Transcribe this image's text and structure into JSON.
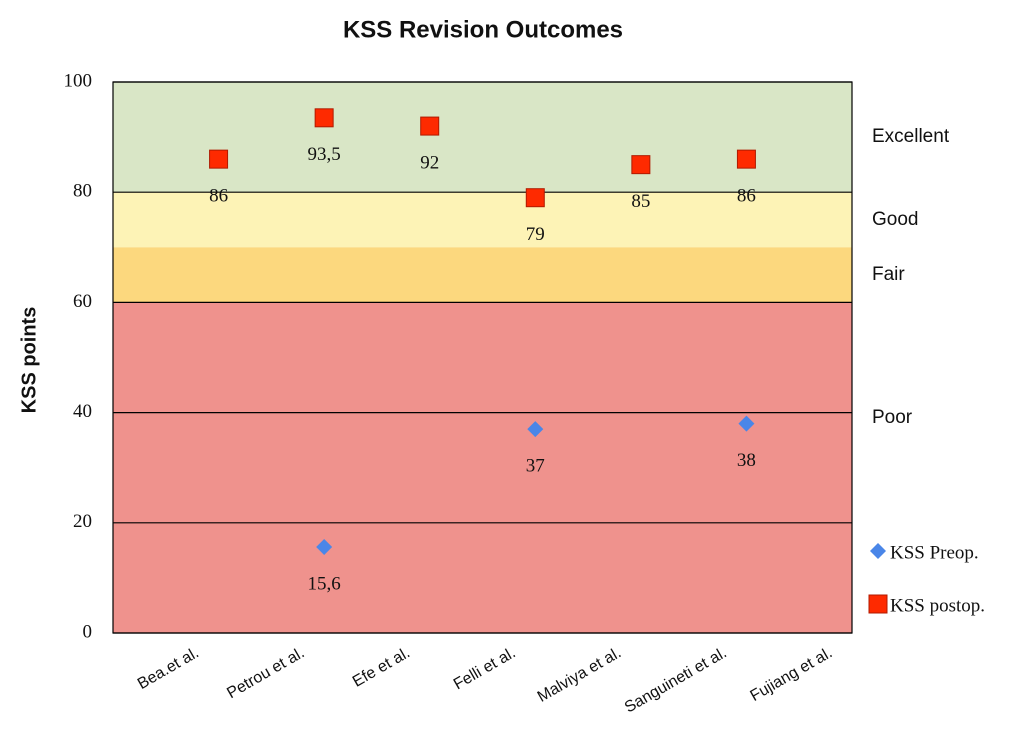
{
  "chart_data": {
    "type": "scatter",
    "title": "KSS Revision Outcomes",
    "y_label": "KSS points",
    "categories": [
      "Bea.et al.",
      "Petrou et al.",
      "Efe et al.",
      "Felli et al.",
      "Malviya et al.",
      "Sanguineti et al.",
      "Fujiang et al."
    ],
    "series": [
      {
        "name": "KSS Preop.",
        "color": "#4a86e8",
        "marker": "diamond",
        "values": [
          null,
          null,
          15.6,
          null,
          37,
          null,
          38
        ],
        "value_labels": [
          null,
          null,
          "15,6",
          null,
          "37",
          null,
          "38"
        ]
      },
      {
        "name": "KSS postop.",
        "color": "#fe2a00",
        "marker": "square",
        "values": [
          null,
          86,
          93.5,
          92,
          79,
          85,
          86
        ],
        "value_labels": [
          null,
          "86",
          "93,5",
          "92",
          "79",
          "85",
          "86"
        ]
      }
    ],
    "bands": [
      {
        "label": "Excellent",
        "from": 80,
        "to": 100,
        "color": "#d9e6c6"
      },
      {
        "label": "Good",
        "from": 70,
        "to": 80,
        "color": "#fdf3b6"
      },
      {
        "label": "Fair",
        "from": 60,
        "to": 70,
        "color": "#fcd87e"
      },
      {
        "label": "Poor",
        "from": 0,
        "to": 60,
        "color": "#ef928d"
      }
    ],
    "ylim": [
      0,
      100
    ],
    "yticks": [
      0,
      20,
      40,
      60,
      80,
      100
    ],
    "grid": true
  }
}
